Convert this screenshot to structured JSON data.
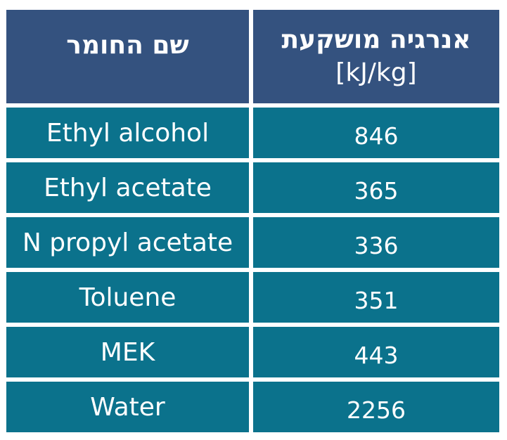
{
  "table": {
    "header": {
      "name_col": "שם החומר",
      "energy_col": "אנרגיה מושקעת",
      "energy_unit": "[kJ/kg]"
    },
    "rows": [
      {
        "name": "Ethyl alcohol",
        "energy": "846"
      },
      {
        "name": "Ethyl acetate",
        "energy": "365"
      },
      {
        "name": "N propyl acetate",
        "energy": "336"
      },
      {
        "name": "Toluene",
        "energy": "351"
      },
      {
        "name": "MEK",
        "energy": "443"
      },
      {
        "name": "Water",
        "energy": "2256"
      }
    ],
    "colors": {
      "header_bg": "#34527f",
      "row_bg": "#0b728c",
      "text": "#ffffff"
    }
  }
}
